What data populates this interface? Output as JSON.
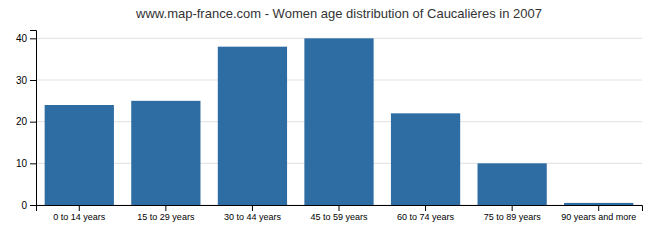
{
  "chart_data": {
    "type": "bar",
    "title": "www.map-france.com - Women age distribution of Caucalières in 2007",
    "categories": [
      "0 to 14 years",
      "15 to 29 years",
      "30 to 44 years",
      "45 to 59 years",
      "60 to 74 years",
      "75 to 89 years",
      "90 years and more"
    ],
    "values": [
      24,
      25,
      38,
      40,
      22,
      10,
      0.5
    ],
    "color": "#2e6da4",
    "ylim": [
      0,
      42
    ],
    "yticks": [
      0,
      10,
      20,
      30,
      40
    ],
    "grid": true
  }
}
